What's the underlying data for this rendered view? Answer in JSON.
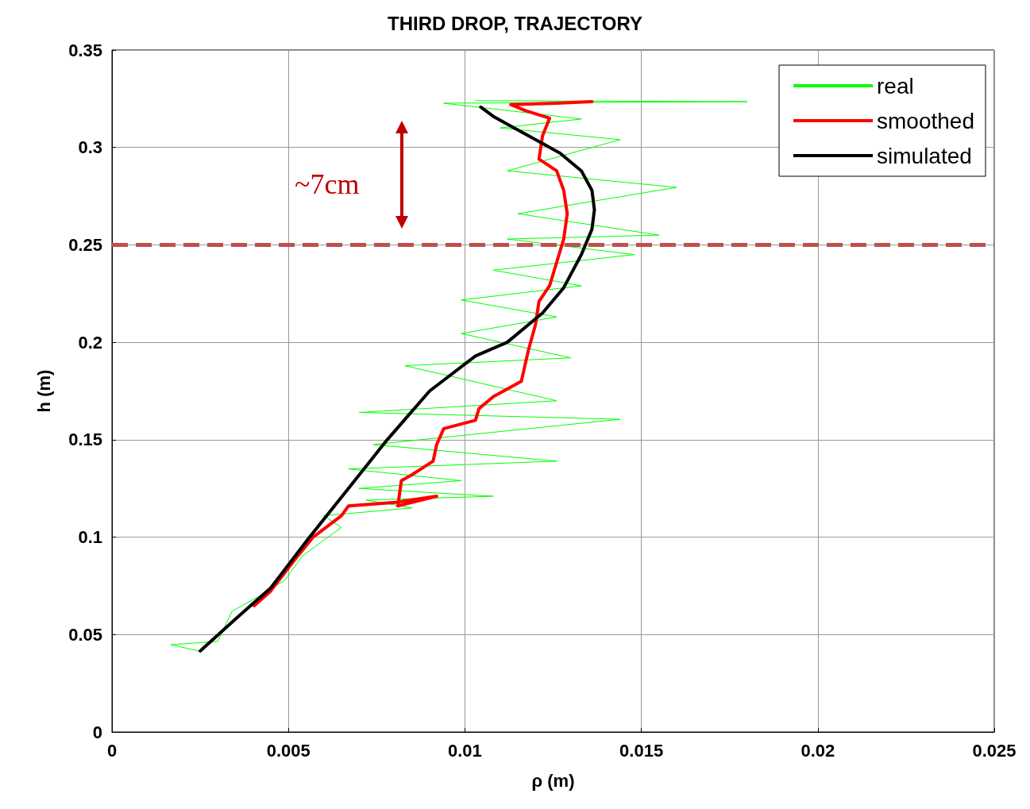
{
  "chart_data": {
    "type": "line",
    "title": "THIRD DROP, TRAJECTORY",
    "xlabel": "ρ (m)",
    "ylabel": "h (m)",
    "xlim": [
      0,
      0.025
    ],
    "xticks": [
      0,
      0.005,
      0.01,
      0.015,
      0.02,
      0.025
    ],
    "ylim": [
      0,
      0.35
    ],
    "yticks": [
      0,
      0.05,
      0.1,
      0.15,
      0.2,
      0.25,
      0.3,
      0.35
    ],
    "grid": true,
    "legend": "top right",
    "marker": "none",
    "line_style": "solid",
    "ref_lines": [
      {
        "axis": "y",
        "value": 0.25,
        "color": "#c0504d",
        "line_style": "dashed"
      }
    ],
    "annotations": [
      "~7cm"
    ],
    "series": [
      {
        "name": "real",
        "color": "#00ff00",
        "x": [
          0.00245,
          0.00167,
          0.003,
          0.0034,
          0.0042,
          0.0049,
          0.0054,
          0.0065,
          0.006,
          0.0085,
          0.0072,
          0.0108,
          0.007,
          0.0099,
          0.0067,
          0.0126,
          0.0074,
          0.0144,
          0.007,
          0.0126,
          0.0083,
          0.013,
          0.0099,
          0.0126,
          0.0099,
          0.0133,
          0.0108,
          0.0148,
          0.0112,
          0.0155,
          0.0115,
          0.016,
          0.0112,
          0.0144,
          0.011,
          0.0133,
          0.0094,
          0.018,
          0.0103
        ],
        "values": [
          0.0416,
          0.0448,
          0.0465,
          0.062,
          0.07,
          0.078,
          0.0905,
          0.105,
          0.111,
          0.115,
          0.119,
          0.121,
          0.125,
          0.129,
          0.135,
          0.139,
          0.1475,
          0.1605,
          0.164,
          0.17,
          0.188,
          0.192,
          0.2045,
          0.213,
          0.2217,
          0.229,
          0.237,
          0.245,
          0.253,
          0.255,
          0.266,
          0.2795,
          0.288,
          0.304,
          0.31,
          0.3146,
          0.3227,
          0.3235,
          0.324
        ]
      },
      {
        "name": "smoothed",
        "color": "#ff0000",
        "x": [
          0.00403,
          0.00448,
          0.00527,
          0.0057,
          0.0065,
          0.0067,
          0.0081,
          0.0092,
          0.0081,
          0.0082,
          0.0085,
          0.0091,
          0.0092,
          0.0094,
          0.0103,
          0.0104,
          0.0108,
          0.0116,
          0.0117,
          0.0118,
          0.012,
          0.0121,
          0.0124,
          0.0126,
          0.0128,
          0.0129,
          0.0128,
          0.0126,
          0.0121,
          0.0122,
          0.0124,
          0.0117,
          0.0113,
          0.0126,
          0.0136
        ],
        "values": [
          0.0648,
          0.072,
          0.0905,
          0.1,
          0.111,
          0.116,
          0.118,
          0.121,
          0.116,
          0.129,
          0.132,
          0.139,
          0.1475,
          0.1557,
          0.16,
          0.166,
          0.172,
          0.18,
          0.188,
          0.196,
          0.209,
          0.221,
          0.229,
          0.241,
          0.253,
          0.266,
          0.278,
          0.288,
          0.294,
          0.306,
          0.315,
          0.319,
          0.322,
          0.3227,
          0.3235
        ]
      },
      {
        "name": "simulated",
        "color": "#000000",
        "x": [
          0.0025,
          0.0035,
          0.0045,
          0.0056,
          0.0067,
          0.0078,
          0.009,
          0.0103,
          0.0112,
          0.0122,
          0.0128,
          0.0133,
          0.0136,
          0.01367,
          0.0136,
          0.0133,
          0.0127,
          0.0121,
          0.0114,
          0.0108,
          0.01045
        ],
        "values": [
          0.0416,
          0.058,
          0.074,
          0.1,
          0.125,
          0.15,
          0.175,
          0.193,
          0.2,
          0.215,
          0.228,
          0.245,
          0.258,
          0.268,
          0.278,
          0.288,
          0.297,
          0.303,
          0.31,
          0.316,
          0.3207
        ]
      }
    ]
  }
}
